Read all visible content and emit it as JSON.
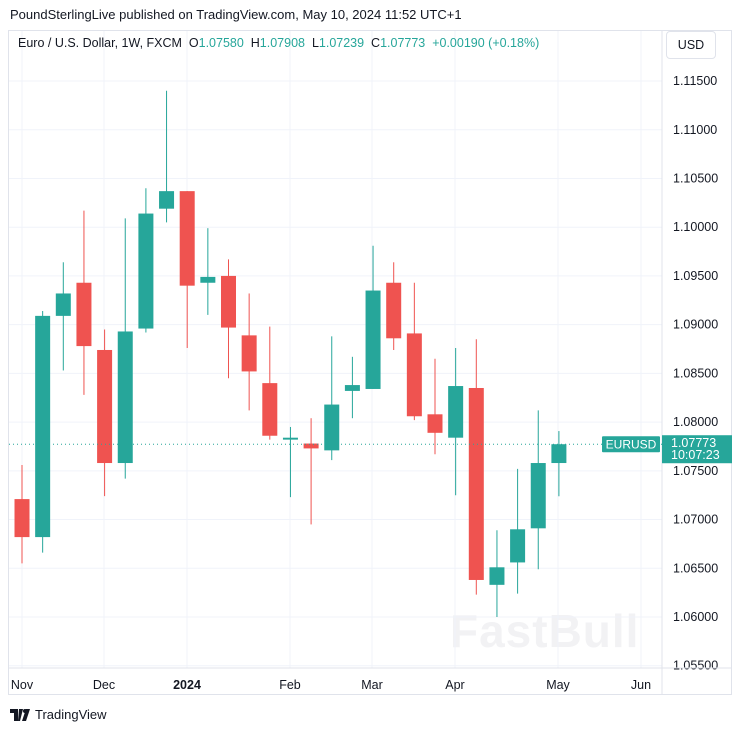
{
  "header": {
    "published": "PoundSterlingLive published on TradingView.com, May 10, 2024 11:52 UTC+1"
  },
  "legend": {
    "title": "Euro / U.S. Dollar, 1W, FXCM",
    "o_label": "O",
    "o": "1.07580",
    "h_label": "H",
    "h": "1.07908",
    "l_label": "L",
    "l": "1.07239",
    "c_label": "C",
    "c": "1.07773",
    "change": "+0.00190 (+0.18%)"
  },
  "currency_button": "USD",
  "price_tag": {
    "symbol": "EURUSD",
    "price": "1.07773",
    "countdown": "10:07:23"
  },
  "footer": {
    "brand": "TradingView"
  },
  "watermark": "FastBull",
  "colors": {
    "up": "#26a69a",
    "down": "#ef5350",
    "grid": "#f0f3fa"
  },
  "chart_data": {
    "type": "candlestick",
    "title": "Euro / U.S. Dollar, 1W, FXCM",
    "ylim": [
      1.0545,
      1.1185
    ],
    "y_ticks": [
      "1.11500",
      "1.11000",
      "1.10500",
      "1.10000",
      "1.09500",
      "1.09000",
      "1.08500",
      "1.08000",
      "1.07500",
      "1.07000",
      "1.06500",
      "1.06000",
      "1.05500"
    ],
    "x_ticks": [
      "Nov",
      "Dec",
      "2024",
      "Feb",
      "Mar",
      "Apr",
      "May",
      "Jun"
    ],
    "grid": true,
    "last_price": 1.07773,
    "candles": [
      {
        "x": "2023-10-30",
        "o": 1.0721,
        "h": 1.0756,
        "l": 1.0655,
        "c": 1.0682
      },
      {
        "x": "2023-11-06",
        "o": 1.0682,
        "h": 1.0914,
        "l": 1.0666,
        "c": 1.0909
      },
      {
        "x": "2023-11-13",
        "o": 1.0909,
        "h": 1.0964,
        "l": 1.0853,
        "c": 1.0932
      },
      {
        "x": "2023-11-20",
        "o": 1.0943,
        "h": 1.1017,
        "l": 1.0828,
        "c": 1.0878
      },
      {
        "x": "2023-11-27",
        "o": 1.0874,
        "h": 1.0895,
        "l": 1.0724,
        "c": 1.0758
      },
      {
        "x": "2023-12-04",
        "o": 1.0758,
        "h": 1.1009,
        "l": 1.0742,
        "c": 1.0893
      },
      {
        "x": "2023-12-11",
        "o": 1.0896,
        "h": 1.104,
        "l": 1.0892,
        "c": 1.1014
      },
      {
        "x": "2023-12-18",
        "o": 1.1019,
        "h": 1.114,
        "l": 1.1005,
        "c": 1.1037
      },
      {
        "x": "2023-12-25",
        "o": 1.1037,
        "h": 1.1037,
        "l": 1.0876,
        "c": 1.094
      },
      {
        "x": "2024-01-01",
        "o": 1.0943,
        "h": 1.0999,
        "l": 1.091,
        "c": 1.0949
      },
      {
        "x": "2024-01-08",
        "o": 1.095,
        "h": 1.0967,
        "l": 1.0845,
        "c": 1.0897
      },
      {
        "x": "2024-01-15",
        "o": 1.0889,
        "h": 1.0932,
        "l": 1.0812,
        "c": 1.0852
      },
      {
        "x": "2024-01-22",
        "o": 1.084,
        "h": 1.0898,
        "l": 1.0782,
        "c": 1.0786
      },
      {
        "x": "2024-01-29",
        "o": 1.0782,
        "h": 1.0795,
        "l": 1.0723,
        "c": 1.0784
      },
      {
        "x": "2024-02-05",
        "o": 1.0778,
        "h": 1.0804,
        "l": 1.0695,
        "c": 1.0773
      },
      {
        "x": "2024-02-12",
        "o": 1.0771,
        "h": 1.0888,
        "l": 1.0761,
        "c": 1.0818
      },
      {
        "x": "2024-02-19",
        "o": 1.0832,
        "h": 1.0867,
        "l": 1.0804,
        "c": 1.0838
      },
      {
        "x": "2024-02-26",
        "o": 1.0834,
        "h": 1.0981,
        "l": 1.0834,
        "c": 1.0935
      },
      {
        "x": "2024-03-04",
        "o": 1.0943,
        "h": 1.0964,
        "l": 1.0874,
        "c": 1.0886
      },
      {
        "x": "2024-03-11",
        "o": 1.0891,
        "h": 1.0943,
        "l": 1.0802,
        "c": 1.0806
      },
      {
        "x": "2024-03-18",
        "o": 1.0808,
        "h": 1.0865,
        "l": 1.0767,
        "c": 1.0789
      },
      {
        "x": "2024-03-25",
        "o": 1.0784,
        "h": 1.0876,
        "l": 1.0725,
        "c": 1.0837
      },
      {
        "x": "2024-04-01",
        "o": 1.0835,
        "h": 1.0885,
        "l": 1.0623,
        "c": 1.0638
      },
      {
        "x": "2024-04-08",
        "o": 1.0633,
        "h": 1.0689,
        "l": 1.06,
        "c": 1.0651
      },
      {
        "x": "2024-04-15",
        "o": 1.0656,
        "h": 1.0752,
        "l": 1.0624,
        "c": 1.069
      },
      {
        "x": "2024-04-22",
        "o": 1.0691,
        "h": 1.0812,
        "l": 1.0649,
        "c": 1.0758
      },
      {
        "x": "2024-04-29",
        "o": 1.0758,
        "h": 1.07908,
        "l": 1.07239,
        "c": 1.07773
      }
    ]
  }
}
